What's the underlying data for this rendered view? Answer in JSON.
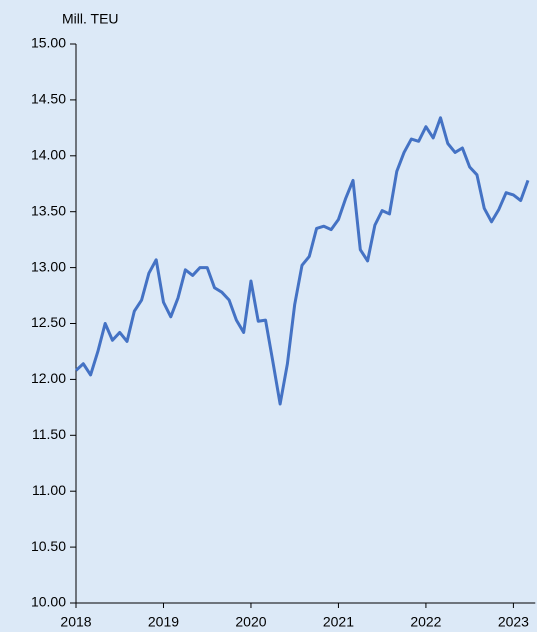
{
  "chart_data": {
    "type": "line",
    "y_label": "Mill. TEU",
    "categories": [
      "2018",
      null,
      null,
      null,
      null,
      null,
      null,
      null,
      null,
      null,
      null,
      null,
      "2019",
      null,
      null,
      null,
      null,
      null,
      null,
      null,
      null,
      null,
      null,
      null,
      "2020",
      null,
      null,
      null,
      null,
      null,
      null,
      null,
      null,
      null,
      null,
      null,
      "2021",
      null,
      null,
      null,
      null,
      null,
      null,
      null,
      null,
      null,
      null,
      null,
      "2022",
      null,
      null,
      null,
      null,
      null,
      null,
      null,
      null,
      null,
      null,
      null,
      "2023",
      null,
      null
    ],
    "series": [
      {
        "color": "#4472c4",
        "values": [
          12.08,
          12.14,
          12.04,
          12.25,
          12.5,
          12.35,
          12.42,
          12.34,
          12.61,
          12.71,
          12.95,
          13.07,
          12.69,
          12.56,
          12.73,
          12.98,
          12.93,
          13.0,
          13.0,
          12.82,
          12.78,
          12.71,
          12.53,
          12.42,
          12.88,
          12.52,
          12.53,
          12.16,
          11.78,
          12.14,
          12.67,
          13.02,
          13.1,
          13.35,
          13.37,
          13.34,
          13.43,
          13.62,
          13.78,
          13.16,
          13.06,
          13.38,
          13.51,
          13.48,
          13.86,
          14.03,
          14.15,
          14.13,
          14.26,
          14.16,
          14.34,
          14.11,
          14.03,
          14.07,
          13.9,
          13.83,
          13.53,
          13.41,
          13.52,
          13.67,
          13.65,
          13.6,
          13.78
        ]
      }
    ],
    "ylim": [
      10,
      15
    ],
    "yticks": [
      {
        "value": 10,
        "label": "10.00"
      },
      {
        "value": 10.5,
        "label": "10.50"
      },
      {
        "value": 11,
        "label": "11.00"
      },
      {
        "value": 11.5,
        "label": "11.50"
      },
      {
        "value": 12,
        "label": "12.00"
      },
      {
        "value": 12.5,
        "label": "12.50"
      },
      {
        "value": 13,
        "label": "13.00"
      },
      {
        "value": 13.5,
        "label": "13.50"
      },
      {
        "value": 14,
        "label": "14.00"
      },
      {
        "value": 14.5,
        "label": "14.50"
      },
      {
        "value": 15,
        "label": "15.00"
      }
    ],
    "grid": false
  }
}
